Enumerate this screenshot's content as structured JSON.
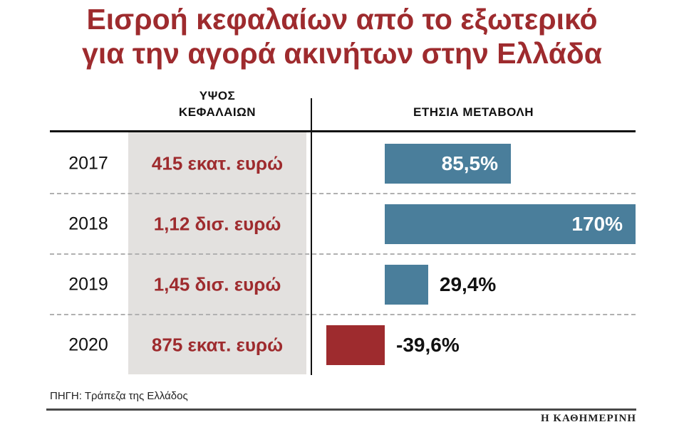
{
  "title": {
    "line1": "Εισροή κεφαλαίων από το εξωτερικό",
    "line2": "για την αγορά ακινήτων στην Ελλάδα"
  },
  "header": {
    "amount_line1": "ΥΨΟΣ",
    "amount_line2": "ΚΕΦΑΛΑΙΩΝ",
    "change": "ΕΤΗΣΙΑ ΜΕΤΑΒΟΛΗ"
  },
  "source": "ΠΗΓΗ: Τράπεζα της Ελλάδος",
  "brand": "Η ΚΑΘΗΜΕΡΙΝΗ",
  "colors": {
    "accent_red": "#9e2b2e",
    "bar_blue": "#4a7e9b",
    "bar_red": "#9e2b2e",
    "column_gray": "#e3e1df"
  },
  "chart_data": {
    "type": "bar",
    "orientation": "horizontal",
    "title": "Εισροή κεφαλαίων από το εξωτερικό για την αγορά ακινήτων στην Ελλάδα",
    "categories": [
      "2017",
      "2018",
      "2019",
      "2020"
    ],
    "series": [
      {
        "name": "ΥΨΟΣ ΚΕΦΑΛΑΙΩΝ",
        "values": [
          "415 εκατ. ευρώ",
          "1,12 δισ. ευρώ",
          "1,45 δισ. ευρώ",
          "875 εκατ. ευρώ"
        ]
      },
      {
        "name": "ΕΤΗΣΙΑ ΜΕΤΑΒΟΛΗ",
        "values": [
          85.5,
          170,
          29.4,
          -39.6
        ],
        "labels": [
          "85,5%",
          "170%",
          "29,4%",
          "-39,6%"
        ]
      }
    ],
    "xlim": [
      -50,
      180
    ],
    "grid": false,
    "legend": "none",
    "source": "ΠΗΓΗ: Τράπεζα της Ελλάδος"
  }
}
